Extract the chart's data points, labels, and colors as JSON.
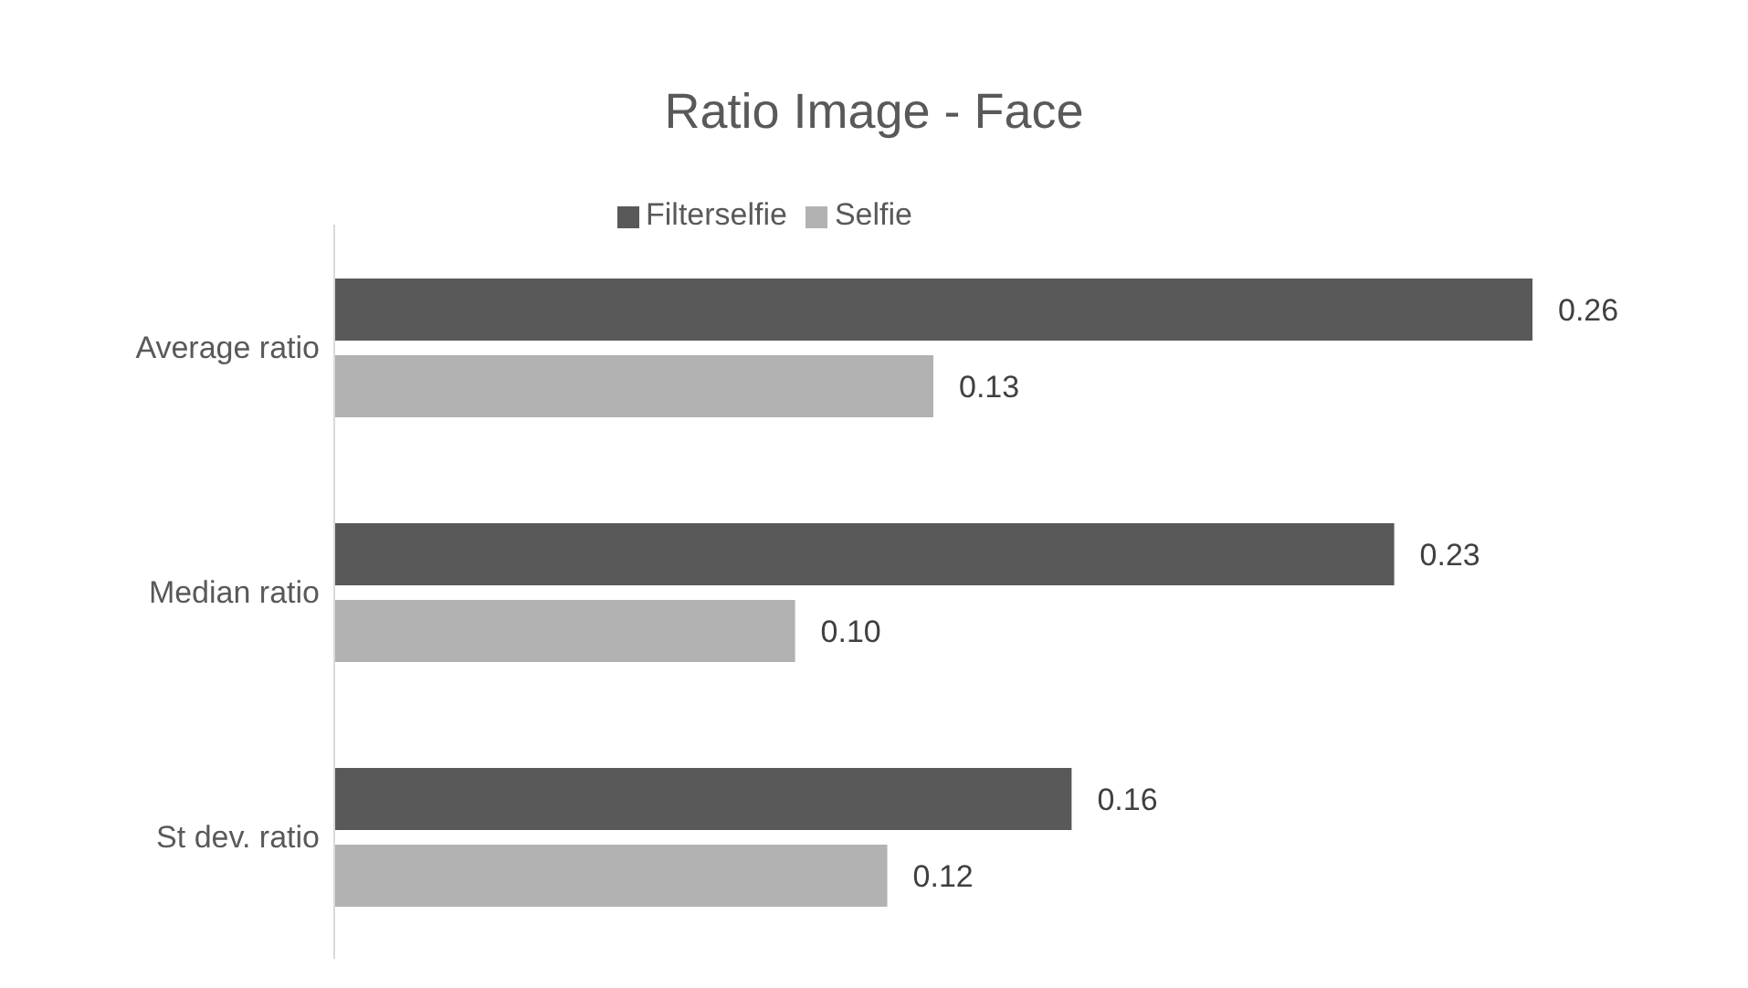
{
  "chart_data": {
    "type": "bar",
    "orientation": "horizontal",
    "title": "Ratio Image - Face",
    "categories": [
      "Average ratio",
      "Median ratio",
      "St dev. ratio"
    ],
    "series": [
      {
        "name": "Filterselfie",
        "color": "#595959",
        "values": [
          0.26,
          0.23,
          0.16
        ],
        "value_labels": [
          "0.26",
          "0.23",
          "0.16"
        ]
      },
      {
        "name": "Selfie",
        "color": "#b2b2b2",
        "values": [
          0.13,
          0.1,
          0.12
        ],
        "value_labels": [
          "0.13",
          "0.10",
          "0.12"
        ]
      }
    ],
    "tick_labels": "y",
    "grid": false,
    "legend": "top"
  }
}
